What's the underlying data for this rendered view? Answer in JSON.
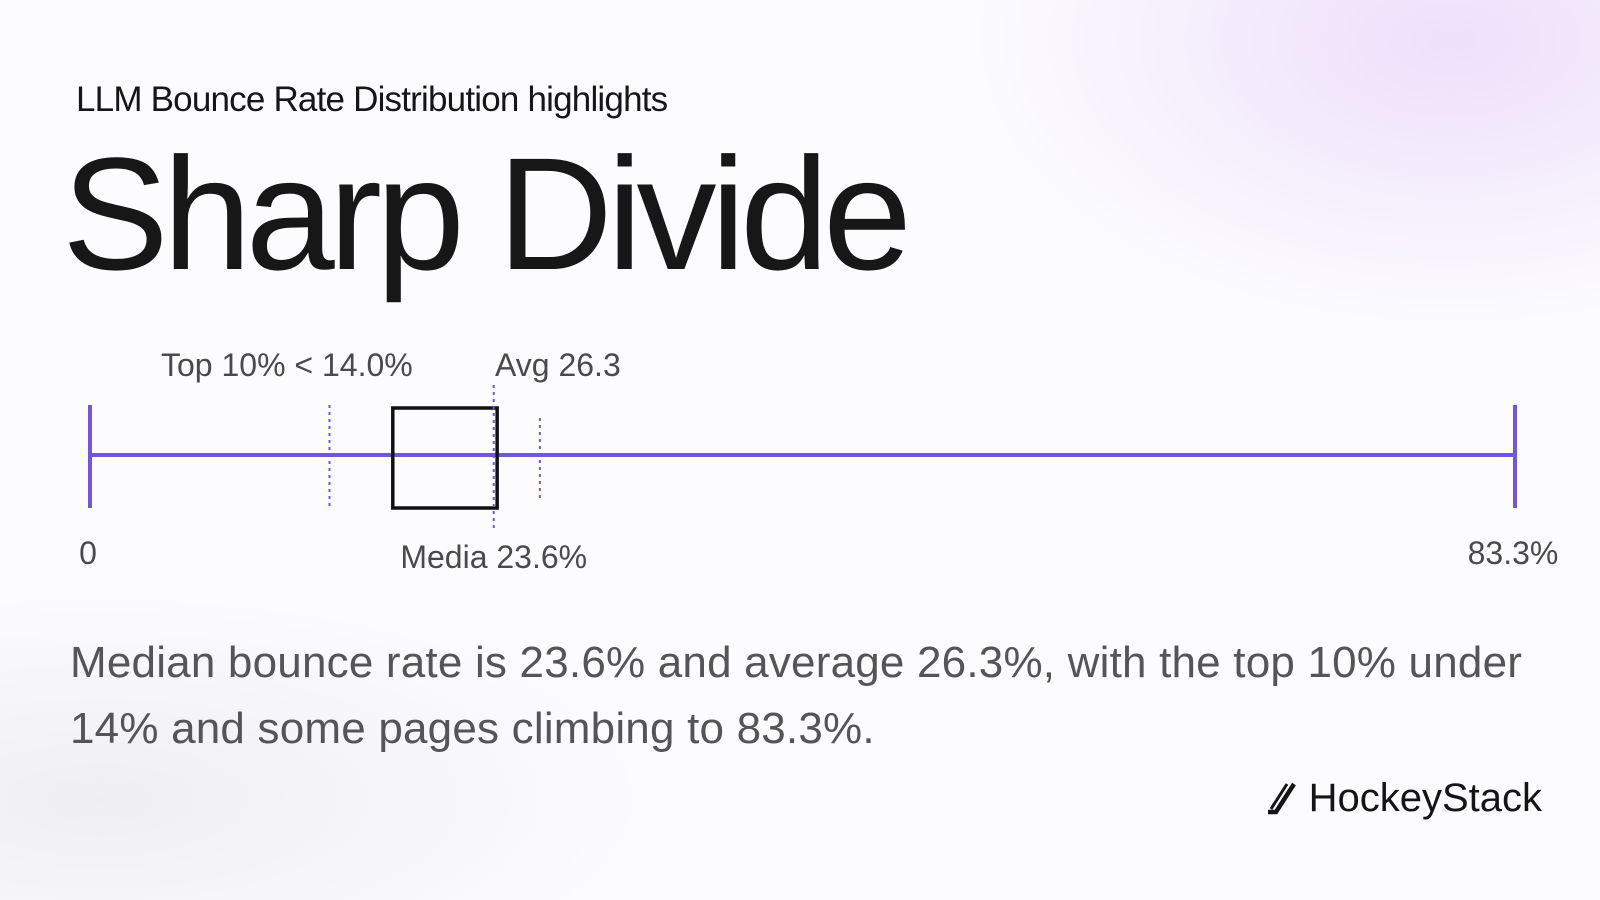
{
  "header": {
    "subtitle": "LLM Bounce Rate Distribution highlights",
    "title": "Sharp Divide"
  },
  "colors": {
    "accent": "#7355e3",
    "box": "#111111",
    "text": "#1a1a1a",
    "muted": "#555558"
  },
  "chart_data": {
    "type": "box",
    "unit": "%",
    "xlim": [
      0,
      83.3
    ],
    "min": 0,
    "max": 83.3,
    "q1": 17.7,
    "q3": 23.8,
    "median": 23.6,
    "mean": 26.3,
    "top10_threshold": 14.0,
    "annotations": {
      "top10": "Top 10% < 14.0%",
      "avg": "Avg 26.3",
      "median": "Media 23.6%",
      "min": "0",
      "max": "83.3%"
    }
  },
  "description": "Median bounce rate is 23.6% and average 26.3%, with the top 10% under 14% and some pages climbing to 83.3%.",
  "brand": {
    "name": "HockeyStack",
    "icon": "hockey-stick-icon"
  }
}
